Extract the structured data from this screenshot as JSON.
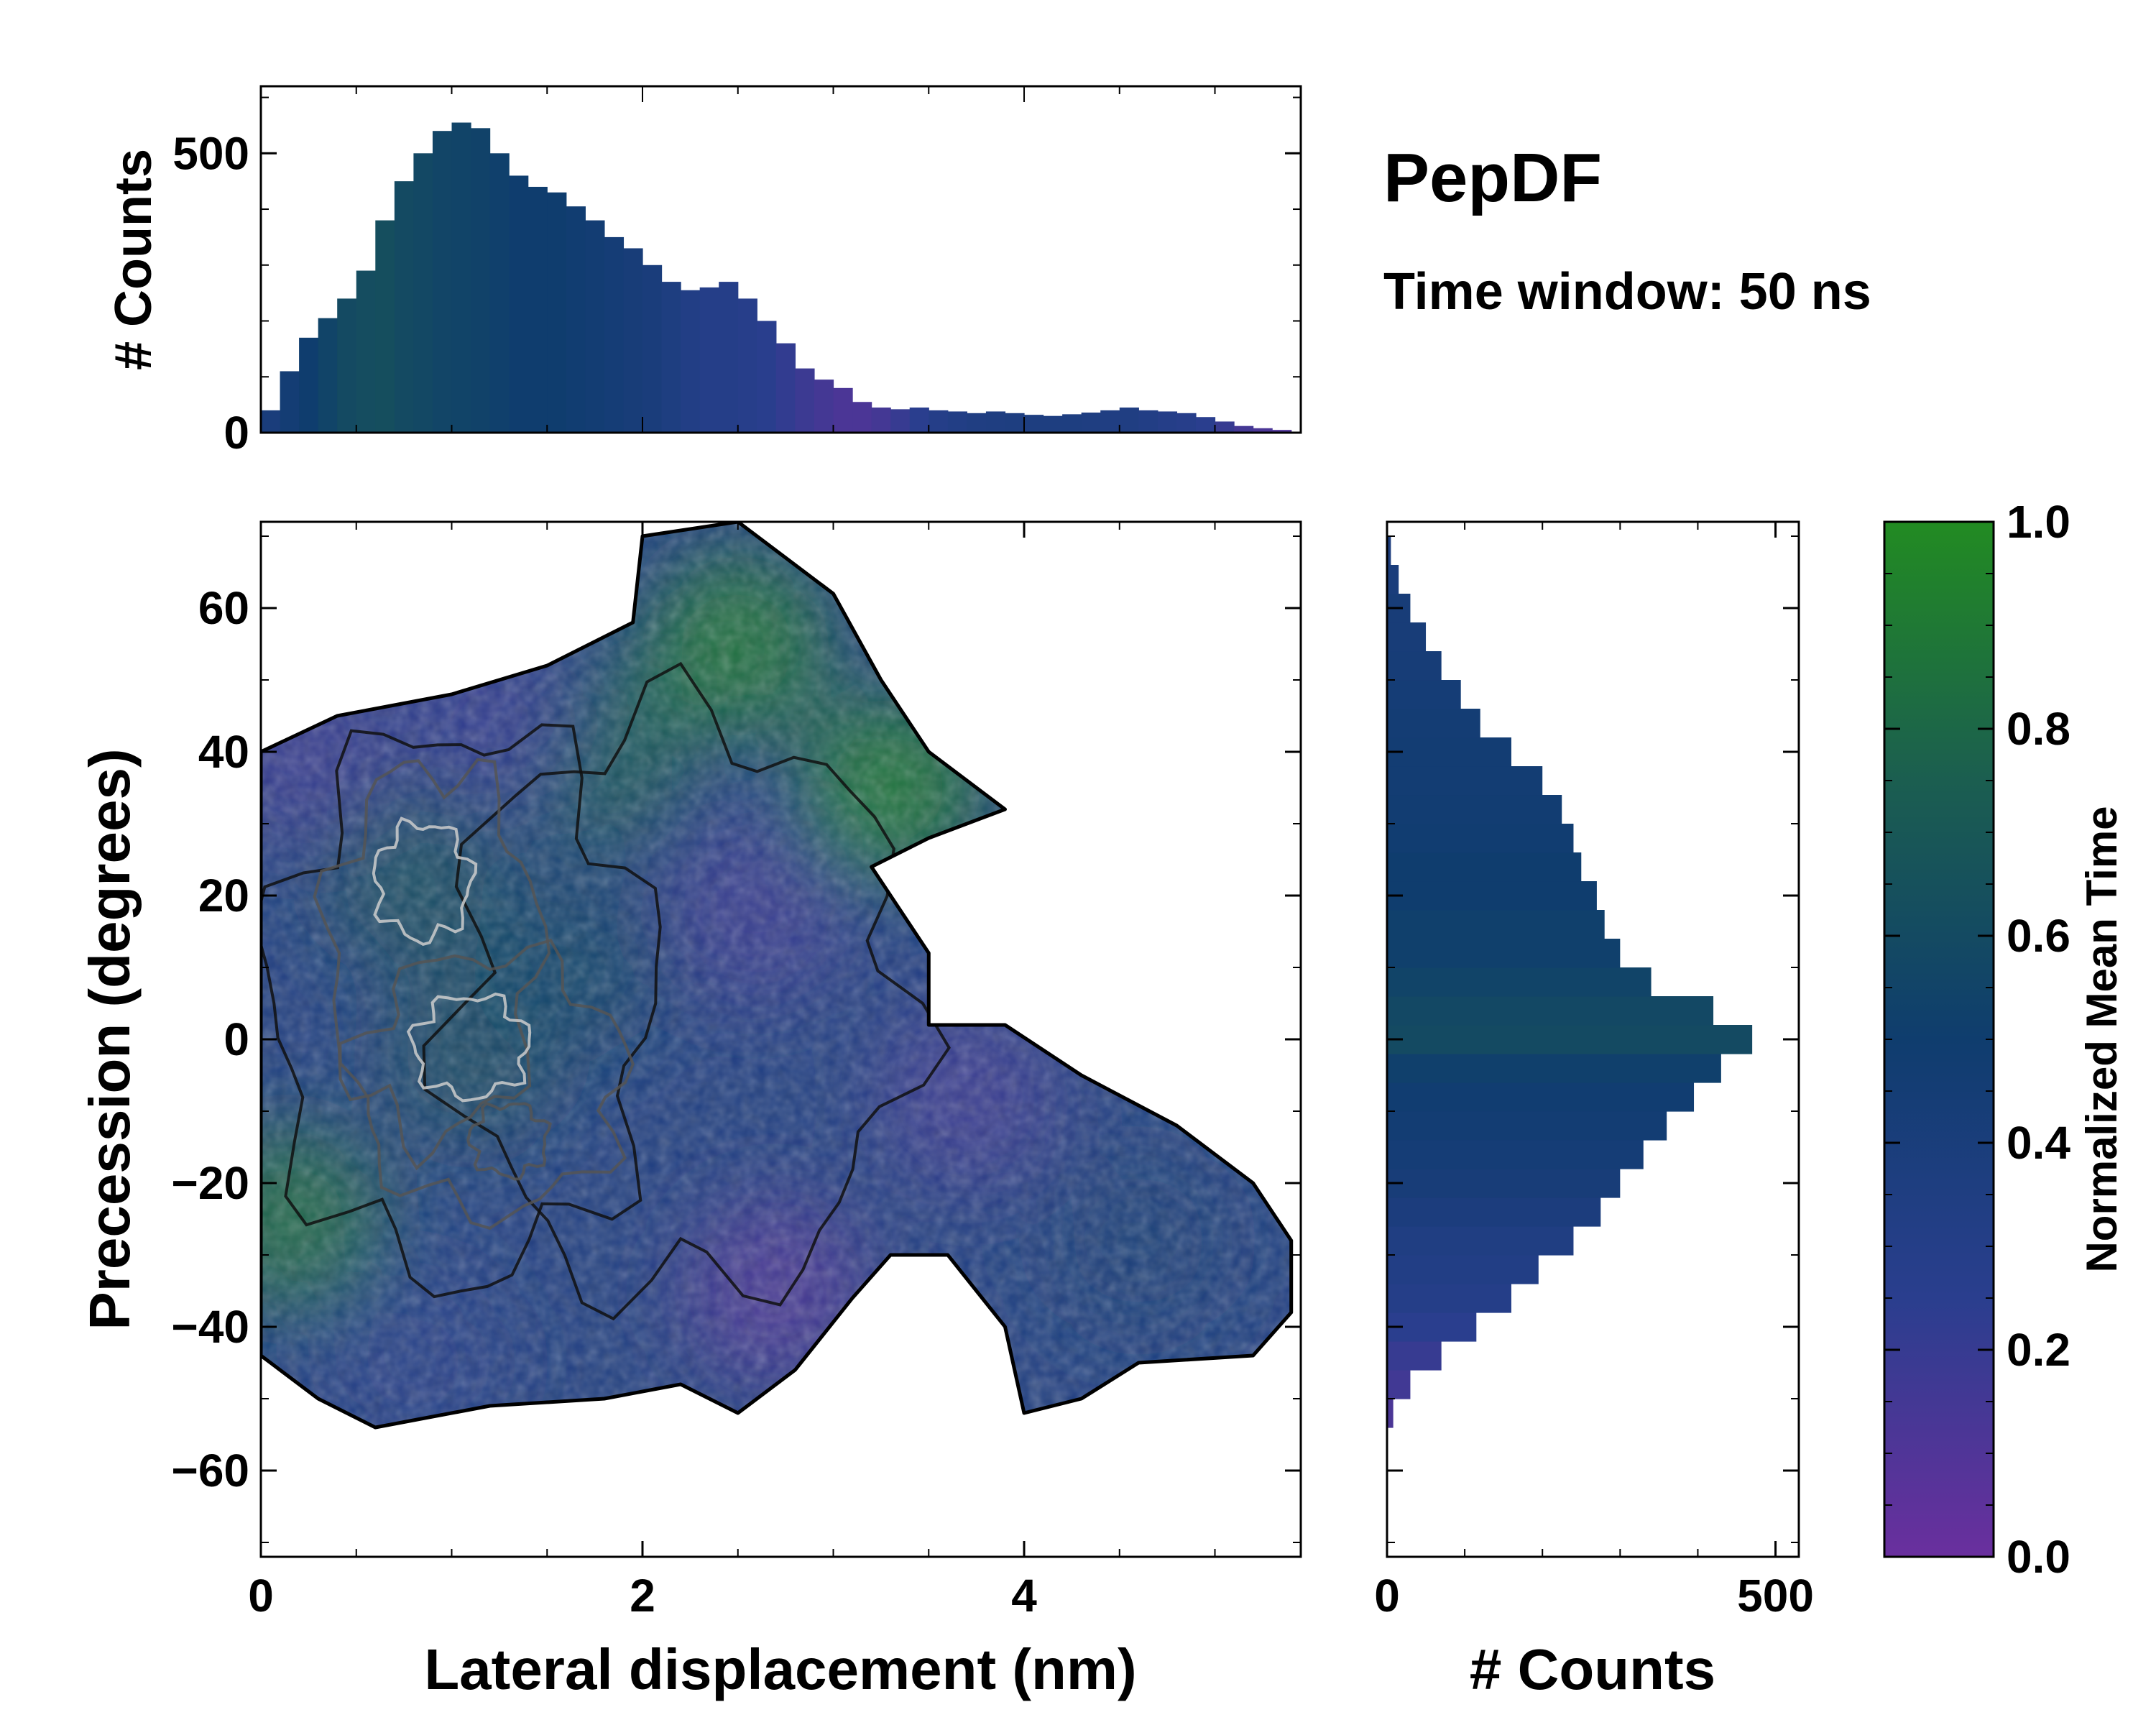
{
  "figure": {
    "title": "PepDF",
    "subtitle": "Time window: 50 ns"
  },
  "colors": {
    "cmap_low": "#6a2f9e",
    "cmap_mid_low": "#2a3e8e",
    "cmap_mid": "#0f3d6e",
    "cmap_mid_high": "#1b5e50",
    "cmap_high": "#228b22",
    "contour_dark": "#111111",
    "contour_mid": "#555555",
    "contour_light": "#cccccc",
    "frame": "#000000"
  },
  "chart_data": [
    {
      "id": "top_histogram",
      "type": "bar",
      "title": "",
      "xlabel": "",
      "ylabel": "# Counts",
      "xlim": [
        0,
        5.45
      ],
      "ylim": [
        0,
        620
      ],
      "yticks": [
        0,
        500
      ],
      "ytick_labels": [
        "0",
        "500"
      ],
      "x": [
        0.05,
        0.15,
        0.25,
        0.35,
        0.45,
        0.55,
        0.65,
        0.75,
        0.85,
        0.95,
        1.05,
        1.15,
        1.25,
        1.35,
        1.45,
        1.55,
        1.65,
        1.75,
        1.85,
        1.95,
        2.05,
        2.15,
        2.25,
        2.35,
        2.45,
        2.55,
        2.65,
        2.75,
        2.85,
        2.95,
        3.05,
        3.15,
        3.25,
        3.35,
        3.45,
        3.55,
        3.65,
        3.75,
        3.85,
        3.95,
        4.05,
        4.15,
        4.25,
        4.35,
        4.45,
        4.55,
        4.65,
        4.75,
        4.85,
        4.95,
        5.05,
        5.15,
        5.25,
        5.35
      ],
      "values": [
        40,
        110,
        170,
        205,
        240,
        290,
        380,
        450,
        500,
        540,
        555,
        545,
        500,
        460,
        440,
        430,
        405,
        380,
        350,
        330,
        300,
        270,
        255,
        260,
        270,
        240,
        200,
        160,
        115,
        95,
        80,
        55,
        45,
        42,
        45,
        40,
        38,
        35,
        38,
        35,
        32,
        30,
        33,
        36,
        40,
        45,
        40,
        38,
        35,
        28,
        20,
        12,
        8,
        5
      ],
      "mean_time": [
        0.4,
        0.45,
        0.5,
        0.55,
        0.6,
        0.62,
        0.63,
        0.6,
        0.58,
        0.56,
        0.55,
        0.54,
        0.52,
        0.5,
        0.5,
        0.5,
        0.48,
        0.46,
        0.44,
        0.42,
        0.4,
        0.36,
        0.32,
        0.3,
        0.3,
        0.28,
        0.26,
        0.22,
        0.18,
        0.15,
        0.12,
        0.12,
        0.15,
        0.2,
        0.25,
        0.3,
        0.32,
        0.34,
        0.35,
        0.36,
        0.36,
        0.36,
        0.36,
        0.35,
        0.34,
        0.34,
        0.32,
        0.3,
        0.28,
        0.25,
        0.2,
        0.15,
        0.12,
        0.1
      ]
    },
    {
      "id": "main_heatmap",
      "type": "heatmap",
      "title": "",
      "xlabel": "Lateral displacement (nm)",
      "ylabel": "Precession (degrees)",
      "xlim": [
        0,
        5.45
      ],
      "ylim": [
        -72,
        72
      ],
      "xticks": [
        0,
        2,
        4
      ],
      "xtick_labels": [
        "0",
        "2",
        "4"
      ],
      "yticks": [
        -60,
        -40,
        -20,
        0,
        20,
        40,
        60
      ],
      "ytick_labels": [
        "−60",
        "−40",
        "−20",
        "0",
        "20",
        "40",
        "60"
      ],
      "grid": false,
      "region_outline": [
        [
          0,
          40
        ],
        [
          0.4,
          45
        ],
        [
          1.0,
          48
        ],
        [
          1.5,
          52
        ],
        [
          1.95,
          58
        ],
        [
          2.0,
          70
        ],
        [
          2.5,
          72
        ],
        [
          3.0,
          62
        ],
        [
          3.25,
          50
        ],
        [
          3.5,
          40
        ],
        [
          3.9,
          32
        ],
        [
          3.5,
          28
        ],
        [
          3.2,
          24
        ],
        [
          3.5,
          12
        ],
        [
          3.5,
          2
        ],
        [
          3.9,
          2
        ],
        [
          4.3,
          -5
        ],
        [
          4.8,
          -12
        ],
        [
          5.2,
          -20
        ],
        [
          5.4,
          -28
        ],
        [
          5.4,
          -38
        ],
        [
          5.2,
          -44
        ],
        [
          4.6,
          -45
        ],
        [
          4.3,
          -50
        ],
        [
          4.0,
          -52
        ],
        [
          3.9,
          -40
        ],
        [
          3.6,
          -30
        ],
        [
          3.3,
          -30
        ],
        [
          3.1,
          -36
        ],
        [
          2.8,
          -46
        ],
        [
          2.5,
          -52
        ],
        [
          2.2,
          -48
        ],
        [
          1.8,
          -50
        ],
        [
          1.2,
          -51
        ],
        [
          0.6,
          -54
        ],
        [
          0.3,
          -50
        ],
        [
          0,
          -44
        ]
      ],
      "hotspots": [
        {
          "x": 0.8,
          "y": 22,
          "v": 0.62
        },
        {
          "x": 1.1,
          "y": -2,
          "v": 0.6
        },
        {
          "x": 0.15,
          "y": -25,
          "v": 0.82
        },
        {
          "x": 1.8,
          "y": 40,
          "v": 0.72
        },
        {
          "x": 2.5,
          "y": 55,
          "v": 0.88
        },
        {
          "x": 3.3,
          "y": 35,
          "v": 0.9
        },
        {
          "x": 1.6,
          "y": 10,
          "v": 0.55
        },
        {
          "x": 2.7,
          "y": -35,
          "v": 0.12
        },
        {
          "x": 3.7,
          "y": -8,
          "v": 0.18
        },
        {
          "x": 4.6,
          "y": -28,
          "v": 0.42
        },
        {
          "x": 2.6,
          "y": 18,
          "v": 0.2
        },
        {
          "x": 0.2,
          "y": 40,
          "v": 0.2
        },
        {
          "x": 1.2,
          "y": 45,
          "v": 0.22
        },
        {
          "x": 0.8,
          "y": -45,
          "v": 0.3
        }
      ],
      "contours": [
        {
          "cx": 1.05,
          "cy": 5,
          "rx": 1.0,
          "ry": 38,
          "level": "dark"
        },
        {
          "cx": 2.2,
          "cy": 5,
          "rx": 1.2,
          "ry": 40,
          "level": "dark"
        },
        {
          "cx": 0.9,
          "cy": 12,
          "rx": 0.55,
          "ry": 26,
          "level": "mid"
        },
        {
          "cx": 1.2,
          "cy": -6,
          "rx": 0.7,
          "ry": 18,
          "level": "mid"
        },
        {
          "cx": 0.85,
          "cy": 22,
          "rx": 0.25,
          "ry": 8,
          "level": "light"
        },
        {
          "cx": 1.1,
          "cy": -1,
          "rx": 0.3,
          "ry": 7,
          "level": "light"
        },
        {
          "cx": 1.3,
          "cy": -14,
          "rx": 0.2,
          "ry": 5,
          "level": "mid"
        }
      ]
    },
    {
      "id": "right_histogram",
      "type": "bar",
      "orientation": "horizontal",
      "title": "",
      "xlabel": "# Counts",
      "ylabel": "",
      "xlim": [
        0,
        530
      ],
      "ylim": [
        -72,
        72
      ],
      "xticks": [
        0,
        500
      ],
      "xtick_labels": [
        "0",
        "500"
      ],
      "y": [
        -52,
        -48,
        -44,
        -40,
        -36,
        -32,
        -28,
        -24,
        -20,
        -16,
        -12,
        -8,
        -4,
        0,
        4,
        8,
        12,
        16,
        20,
        24,
        28,
        32,
        36,
        40,
        44,
        48,
        52,
        56,
        60,
        64,
        68
      ],
      "values": [
        8,
        30,
        70,
        115,
        160,
        195,
        240,
        275,
        300,
        330,
        360,
        395,
        430,
        470,
        420,
        340,
        300,
        280,
        270,
        250,
        240,
        225,
        200,
        160,
        120,
        95,
        70,
        50,
        30,
        15,
        5
      ],
      "mean_time": [
        0.12,
        0.16,
        0.2,
        0.25,
        0.3,
        0.32,
        0.34,
        0.38,
        0.42,
        0.44,
        0.46,
        0.48,
        0.52,
        0.6,
        0.58,
        0.55,
        0.52,
        0.52,
        0.5,
        0.5,
        0.48,
        0.47,
        0.46,
        0.46,
        0.45,
        0.44,
        0.43,
        0.42,
        0.42,
        0.4,
        0.38
      ]
    },
    {
      "id": "colorbar",
      "type": "colorbar",
      "label": "Normalized Mean Time",
      "range": [
        0.0,
        1.0
      ],
      "ticks": [
        0.0,
        0.2,
        0.4,
        0.6,
        0.8,
        1.0
      ],
      "tick_labels": [
        "0.0",
        "0.2",
        "0.4",
        "0.6",
        "0.8",
        "1.0"
      ]
    }
  ]
}
